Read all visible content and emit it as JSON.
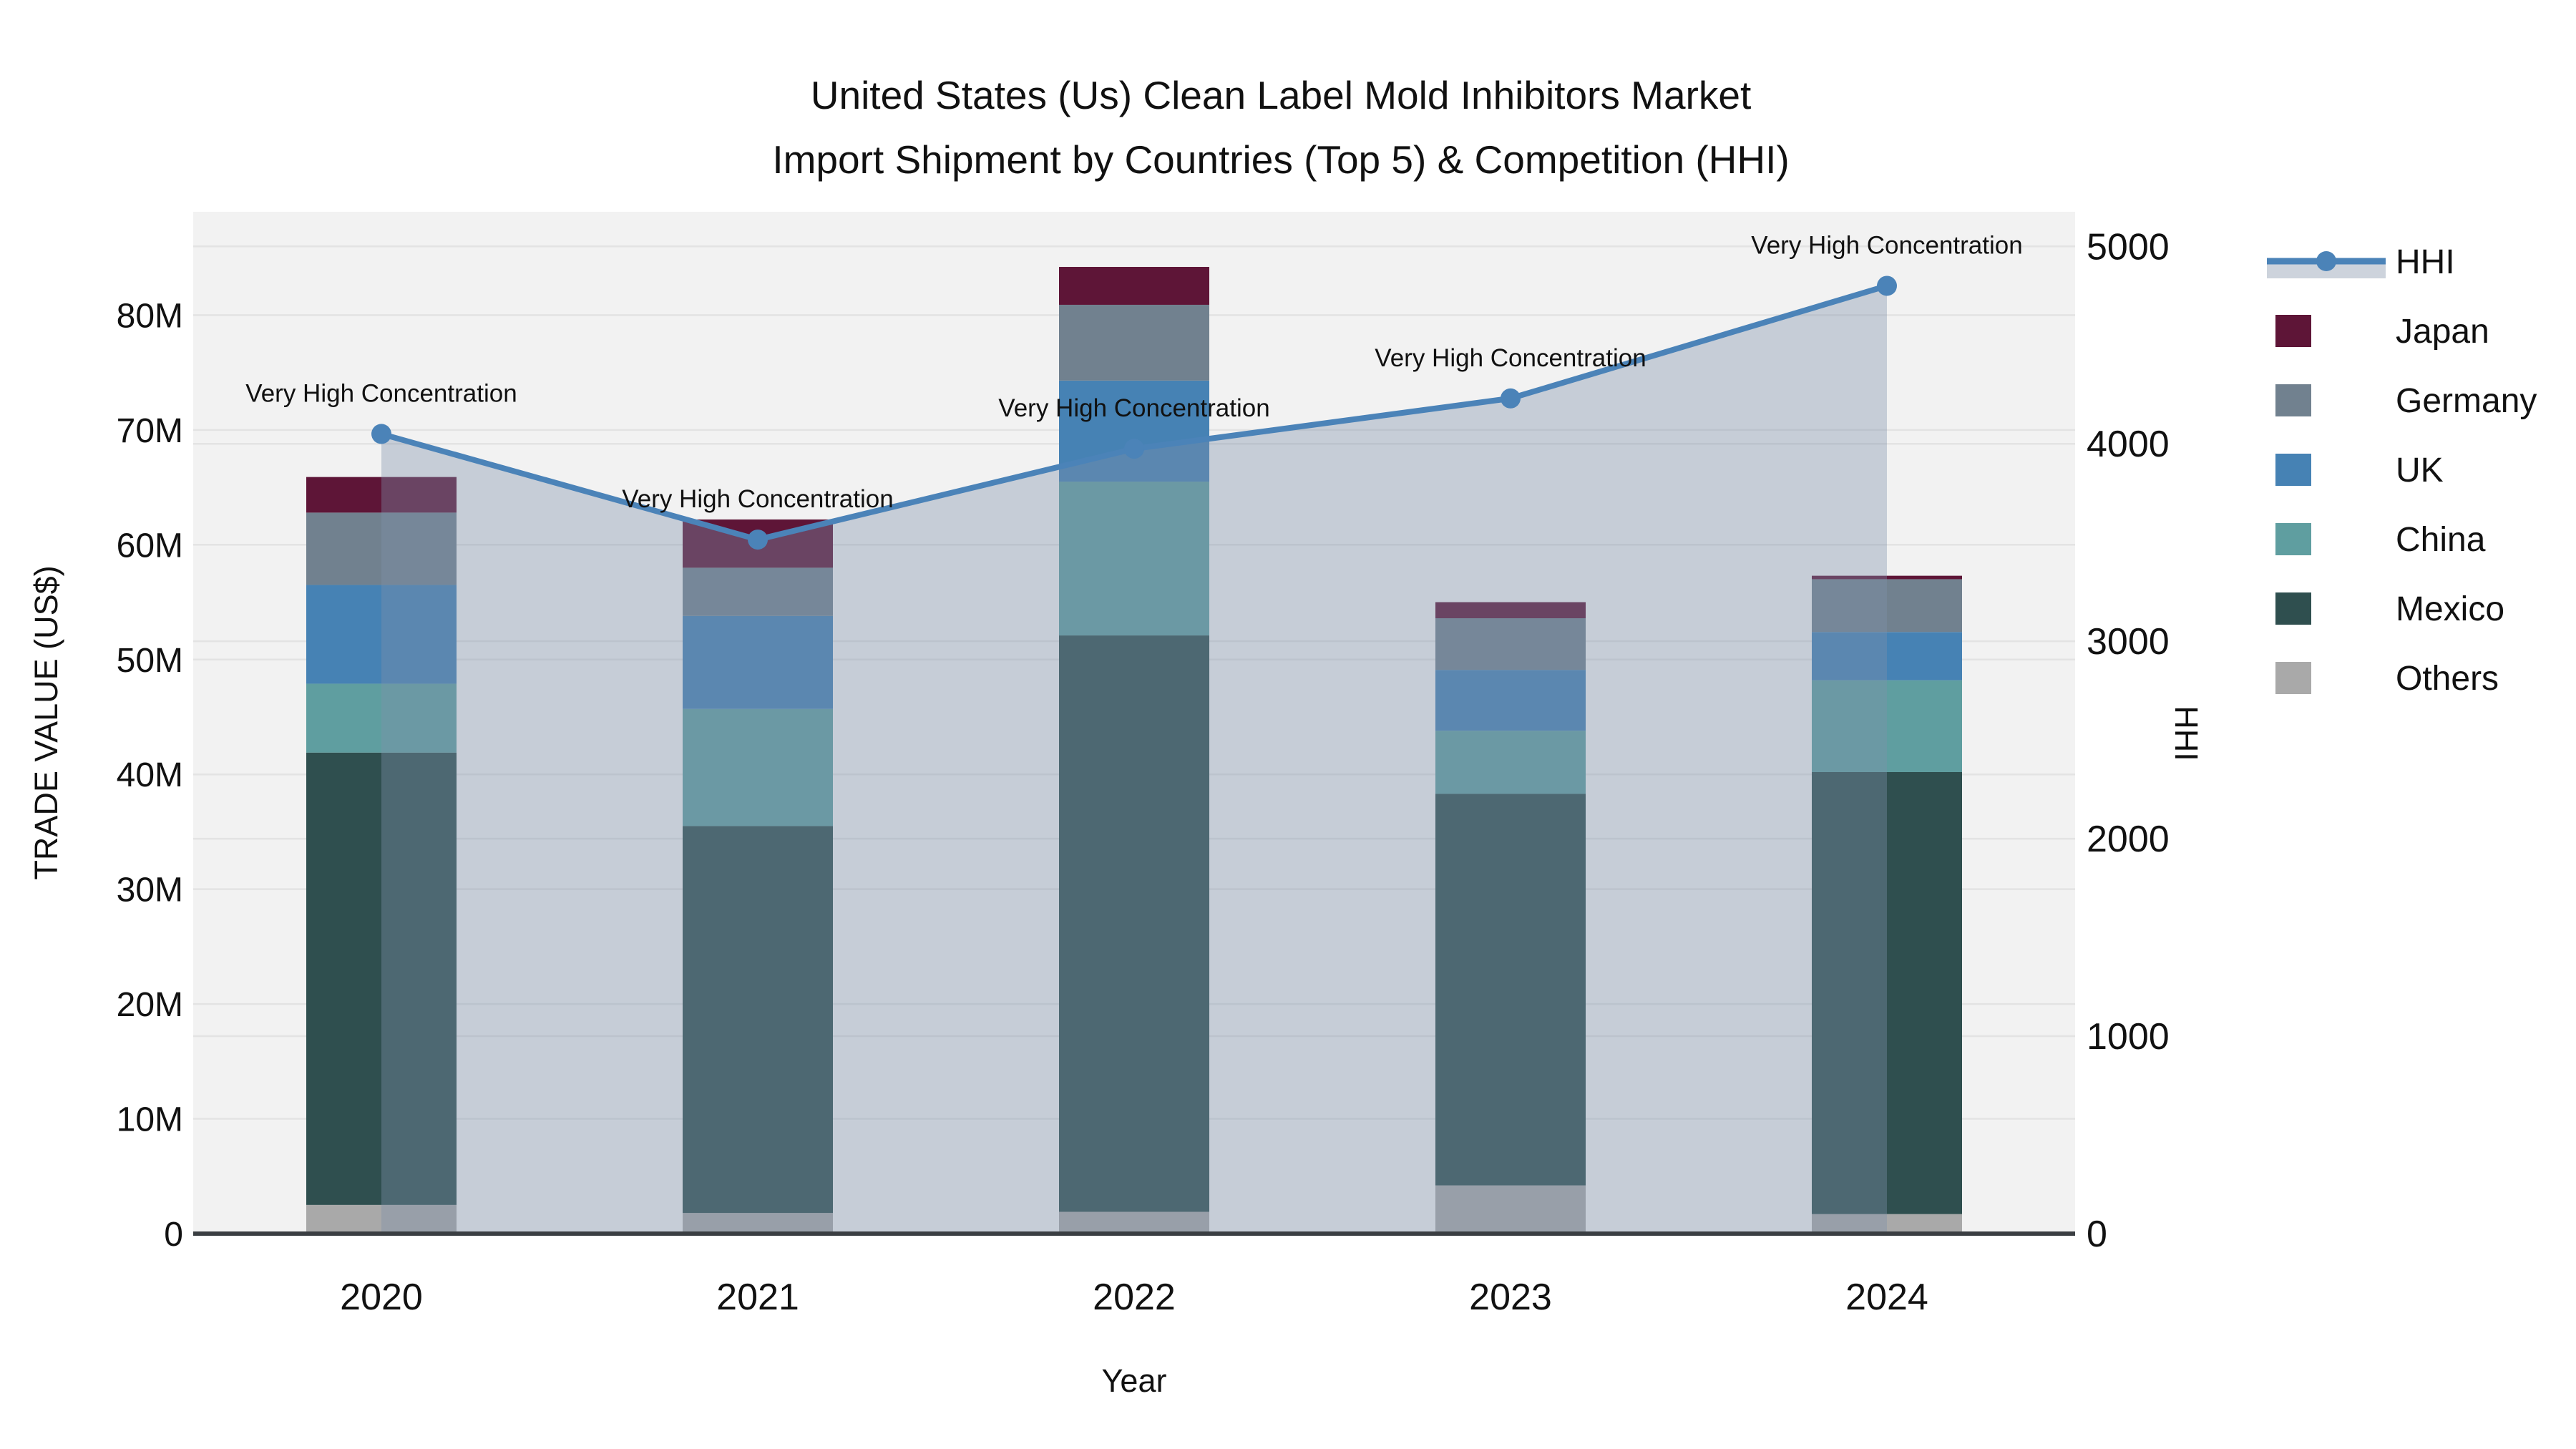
{
  "chart_data": {
    "type": "bar",
    "combo": "stacked-bar-with-line",
    "title": "United States (Us) Clean Label Mold Inhibitors Market",
    "subtitle": "Import Shipment by Countries (Top 5) & Competition (HHI)",
    "xlabel": "Year",
    "ylabel_left": "TRADE VALUE (US$)",
    "ylabel_right": "HHI",
    "unit_left_values": "US$ millions",
    "categories": [
      "2020",
      "2021",
      "2022",
      "2023",
      "2024"
    ],
    "series": [
      {
        "name": "Others",
        "color": "#A9A9A9",
        "values": [
          2.5,
          1.8,
          1.9,
          4.2,
          1.7
        ]
      },
      {
        "name": "Mexico",
        "color": "#2F4F4F",
        "values": [
          39.4,
          33.7,
          50.2,
          34.1,
          38.5
        ]
      },
      {
        "name": "China",
        "color": "#5F9EA0",
        "values": [
          6.0,
          10.2,
          13.4,
          5.5,
          8.0
        ]
      },
      {
        "name": "UK",
        "color": "#4682B4",
        "values": [
          8.6,
          8.1,
          8.8,
          5.3,
          4.2
        ]
      },
      {
        "name": "Germany",
        "color": "#71818F",
        "values": [
          6.3,
          4.2,
          6.6,
          4.5,
          4.6
        ]
      },
      {
        "name": "Japan",
        "color": "#5E1537",
        "values": [
          3.1,
          4.2,
          3.3,
          1.4,
          0.3
        ]
      }
    ],
    "bar_totals": [
      65.9,
      62.2,
      84.2,
      55.0,
      57.3
    ],
    "line_series": {
      "name": "HHI",
      "color": "#4B83B8",
      "area_fill": "rgba(125,145,170,0.38)",
      "values": [
        4050,
        3515,
        3975,
        4230,
        4800
      ],
      "annotations": [
        "Very High Concentration",
        "Very High Concentration",
        "Very High Concentration",
        "Very High Concentration",
        "Very High Concentration"
      ]
    },
    "left_axis": {
      "labels": [
        "0",
        "10M",
        "20M",
        "30M",
        "40M",
        "50M",
        "60M",
        "70M",
        "80M"
      ],
      "tick_values": [
        0,
        10,
        20,
        30,
        40,
        50,
        60,
        70,
        80
      ],
      "max": 89
    },
    "right_axis": {
      "labels": [
        "0",
        "1000",
        "2000",
        "3000",
        "4000",
        "5000"
      ],
      "tick_values": [
        0,
        1000,
        2000,
        3000,
        4000,
        5000
      ],
      "max": 5175
    },
    "legend": {
      "items": [
        {
          "label": "HHI",
          "type": "line",
          "color": "#4B83B8"
        },
        {
          "label": "Japan",
          "type": "swatch",
          "color": "#5E1537"
        },
        {
          "label": "Germany",
          "type": "swatch",
          "color": "#71818F"
        },
        {
          "label": "UK",
          "type": "swatch",
          "color": "#4682B4"
        },
        {
          "label": "China",
          "type": "swatch",
          "color": "#5F9EA0"
        },
        {
          "label": "Mexico",
          "type": "swatch",
          "color": "#2F4F4F"
        },
        {
          "label": "Others",
          "type": "swatch",
          "color": "#A9A9A9"
        }
      ]
    },
    "style": {
      "plot_bg": "#f2f2f2",
      "grid": "#e3e3e3",
      "axis_line": "#3a3e42",
      "legend_area_band": "#cdd3dc"
    }
  }
}
